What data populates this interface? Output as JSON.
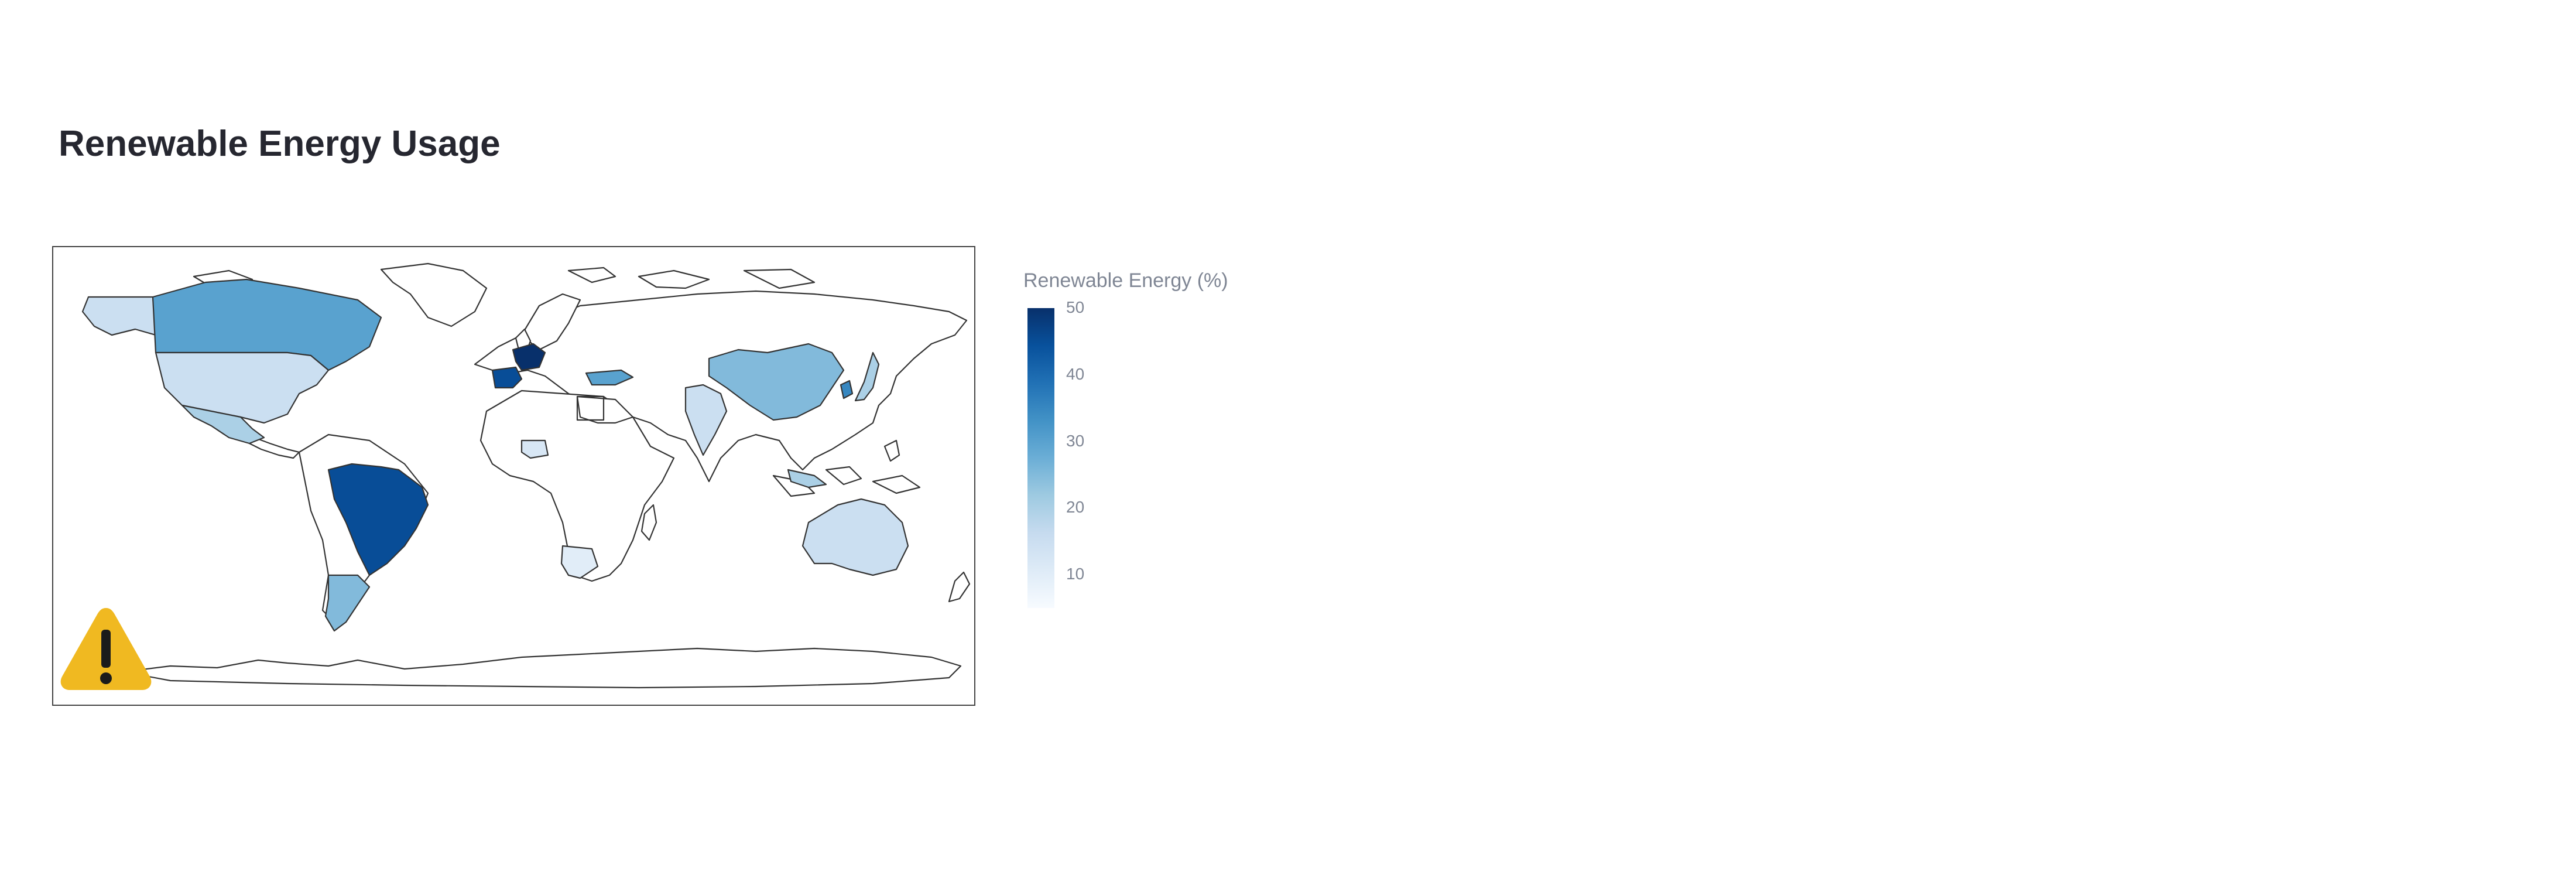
{
  "page": {
    "title": "Renewable Energy Usage"
  },
  "colors": {
    "scale_low": "#f7fbff",
    "scale_high": "#08306b",
    "land_outline": "#333333",
    "warning": "#f0b921"
  },
  "warning": {
    "icon": "warning-triangle-icon"
  },
  "chart_data": {
    "type": "choropleth",
    "title": "",
    "colorbar": {
      "title": "Renewable Energy (%)",
      "range": [
        5,
        50
      ],
      "ticks": [
        "10",
        "20",
        "30",
        "40",
        "50"
      ],
      "colorscale": "Blues"
    },
    "series": [
      {
        "region": "Canada",
        "value": 30
      },
      {
        "region": "Alaska (USA)",
        "value": 15
      },
      {
        "region": "United States",
        "value": 15
      },
      {
        "region": "Mexico",
        "value": 20
      },
      {
        "region": "Brazil",
        "value": 45
      },
      {
        "region": "Argentina",
        "value": 25
      },
      {
        "region": "France",
        "value": 50
      },
      {
        "region": "Spain",
        "value": 45
      },
      {
        "region": "Turkey",
        "value": 30
      },
      {
        "region": "China",
        "value": 25
      },
      {
        "region": "South Korea",
        "value": 35
      },
      {
        "region": "Japan",
        "value": 20
      },
      {
        "region": "India",
        "value": 15
      },
      {
        "region": "Australia",
        "value": 15
      },
      {
        "region": "Nigeria",
        "value": 12
      },
      {
        "region": "South Africa",
        "value": 10
      },
      {
        "region": "Indonesia",
        "value": 20
      }
    ]
  }
}
